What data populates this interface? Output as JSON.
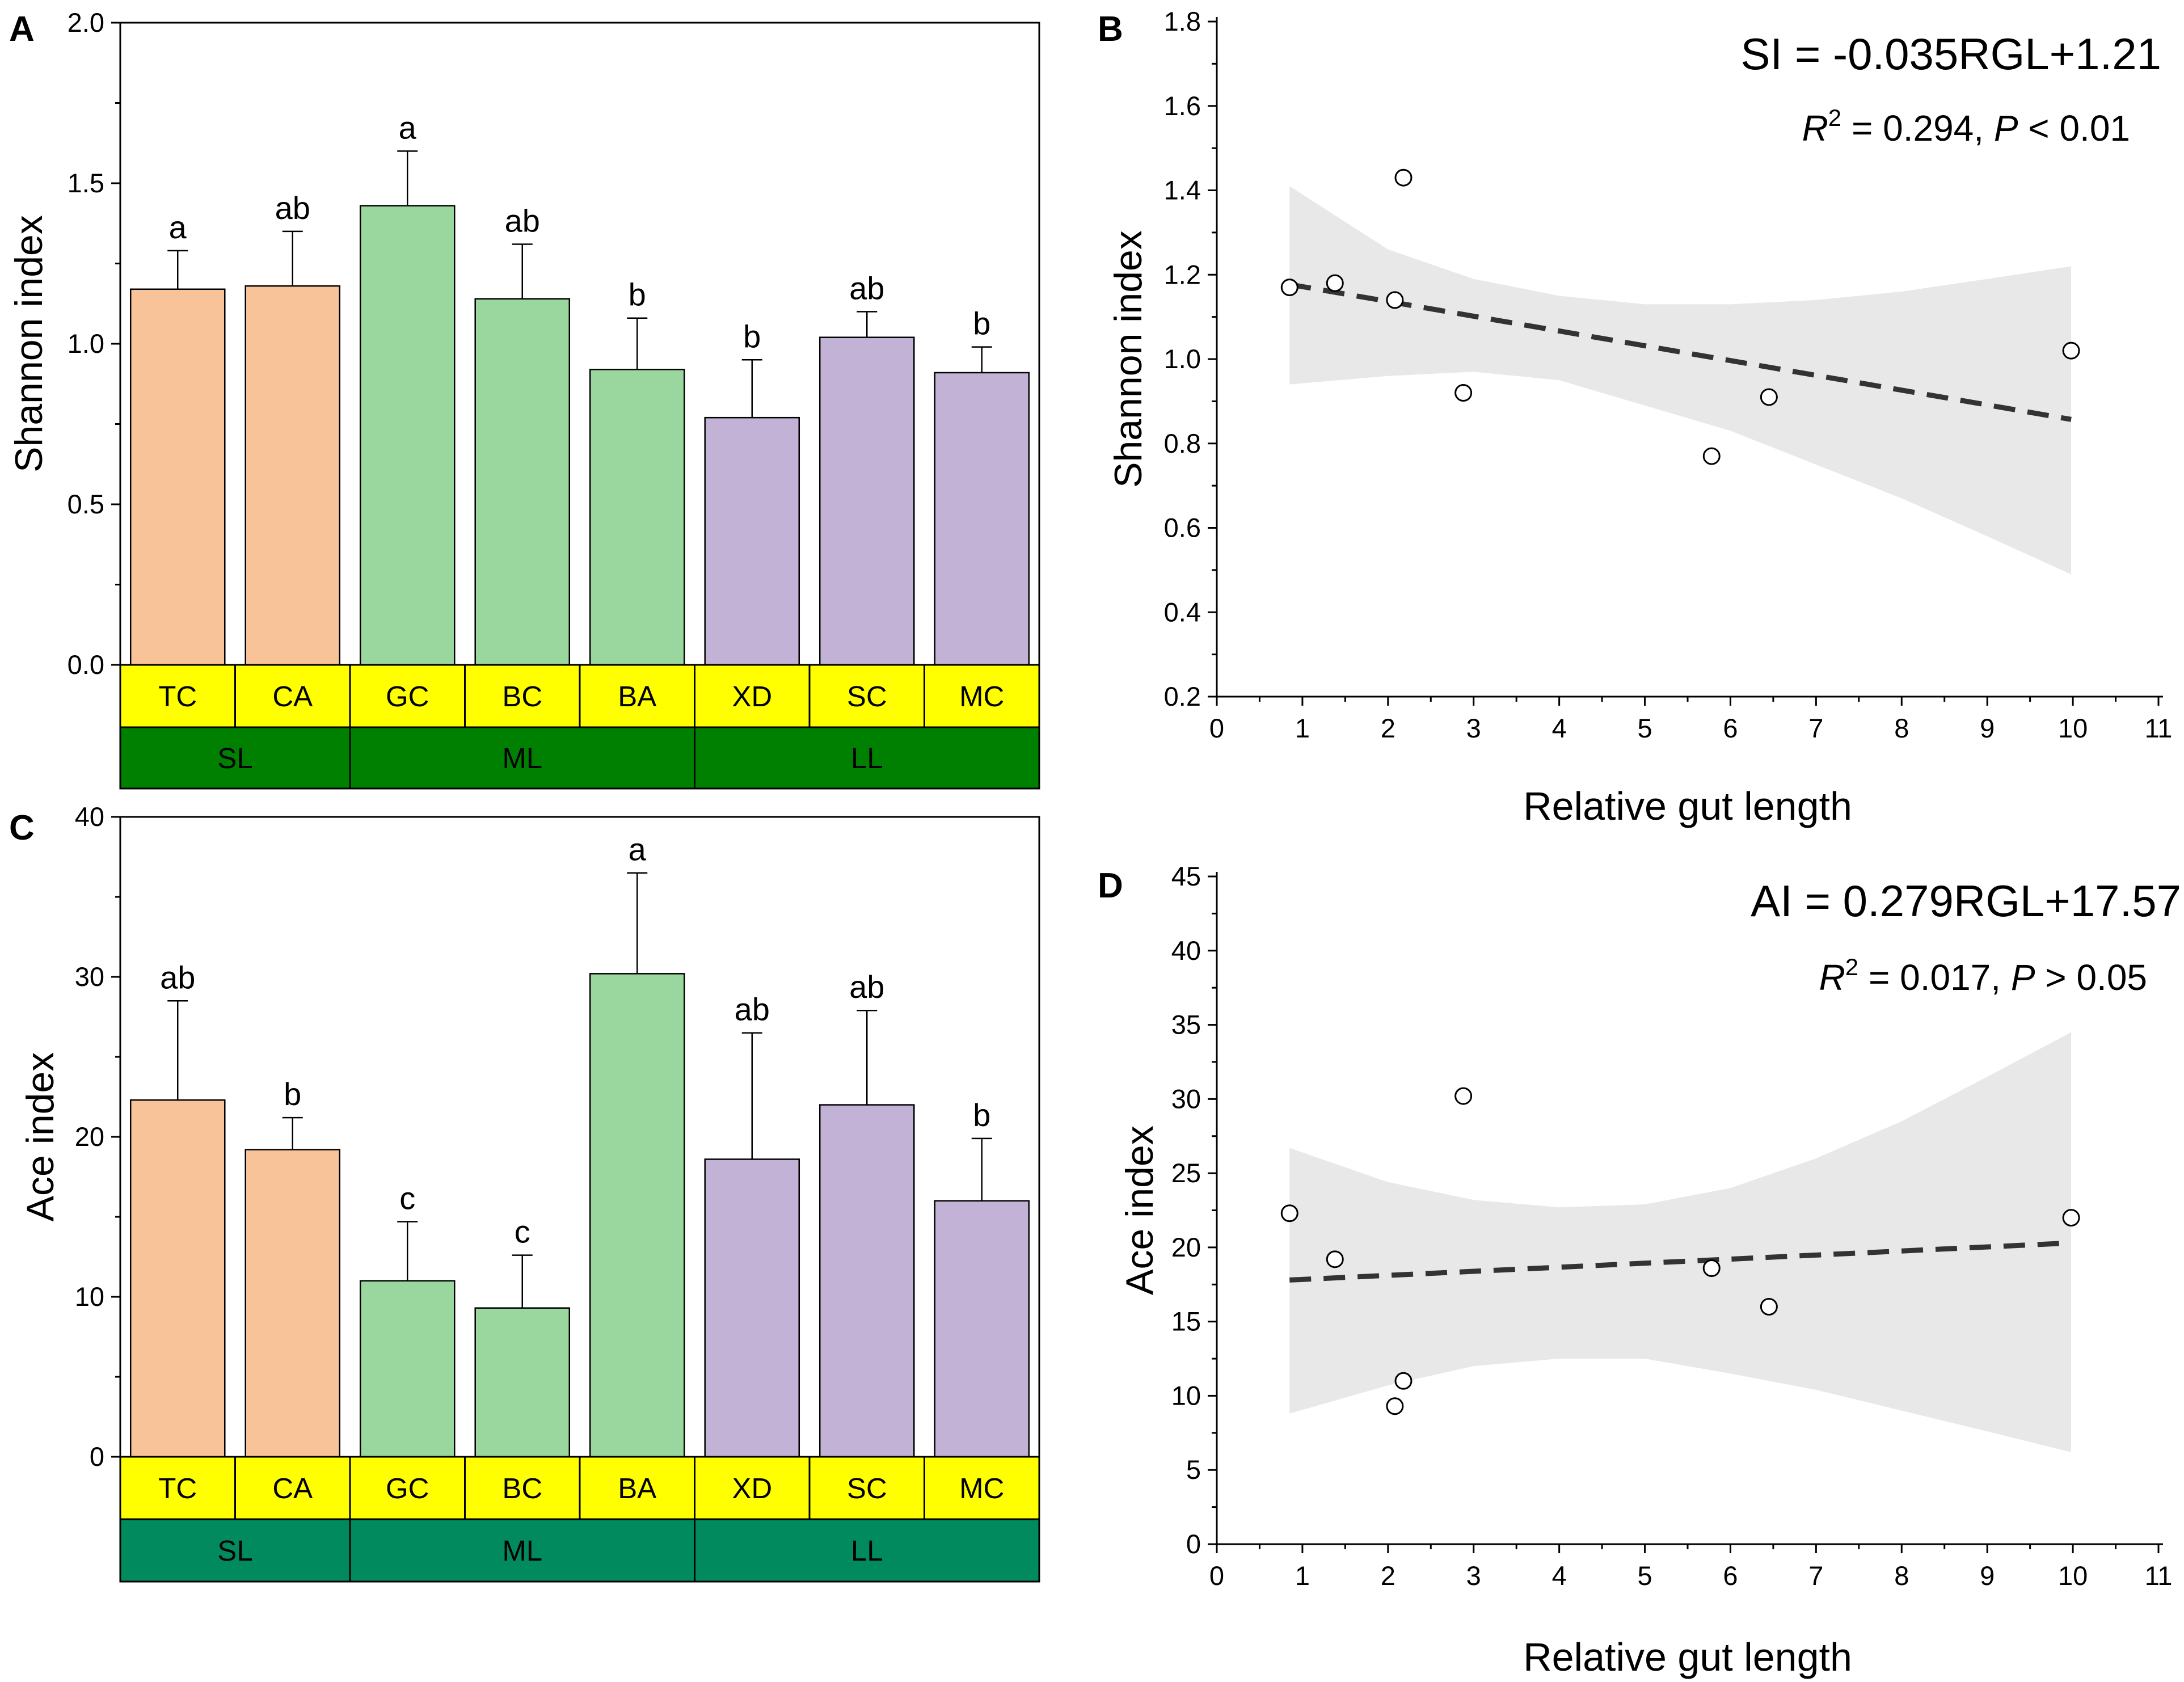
{
  "chart_data": [
    {
      "panel": "A",
      "type": "bar",
      "ylabel": "Shannon index",
      "ylim": [
        0,
        2.0
      ],
      "yticks": [
        "0.0",
        "0.5",
        "1.0",
        "1.5",
        "2.0"
      ],
      "categories": [
        "TC",
        "CA",
        "GC",
        "BC",
        "BA",
        "XD",
        "SC",
        "MC"
      ],
      "values": [
        1.17,
        1.18,
        1.43,
        1.14,
        0.92,
        0.77,
        1.02,
        0.91
      ],
      "errors": [
        0.12,
        0.17,
        0.17,
        0.17,
        0.16,
        0.18,
        0.08,
        0.08
      ],
      "letters": [
        "a",
        "ab",
        "a",
        "ab",
        "b",
        "b",
        "ab",
        "b"
      ],
      "category_group": [
        "SL",
        "SL",
        "ML",
        "ML",
        "ML",
        "LL",
        "LL",
        "LL"
      ],
      "groups": [
        {
          "name": "SL",
          "color": "#F9C399"
        },
        {
          "name": "ML",
          "color": "#9AD79E"
        },
        {
          "name": "LL",
          "color": "#C2B2D6"
        }
      ],
      "category_band_color": "#FFFF00",
      "group_band_color": "#008000"
    },
    {
      "panel": "B",
      "type": "scatter",
      "xlabel": "Relative gut length",
      "ylabel": "Shannon index",
      "xlim": [
        0,
        11
      ],
      "ylim": [
        0.2,
        1.8
      ],
      "xticks": [
        "0",
        "1",
        "2",
        "3",
        "4",
        "5",
        "6",
        "7",
        "8",
        "9",
        "10",
        "11"
      ],
      "yticks": [
        "0.2",
        "0.4",
        "0.6",
        "0.8",
        "1.0",
        "1.2",
        "1.4",
        "1.6",
        "1.8"
      ],
      "points": [
        {
          "x": 0.85,
          "y": 1.17
        },
        {
          "x": 1.38,
          "y": 1.18
        },
        {
          "x": 2.08,
          "y": 1.14
        },
        {
          "x": 2.18,
          "y": 1.43
        },
        {
          "x": 2.88,
          "y": 0.92
        },
        {
          "x": 5.78,
          "y": 0.77
        },
        {
          "x": 6.45,
          "y": 0.91
        },
        {
          "x": 9.98,
          "y": 1.02
        }
      ],
      "fit": {
        "x0": 0.85,
        "x1": 9.98,
        "y0": 1.177,
        "y1": 0.857
      },
      "band": {
        "x": [
          0.85,
          2.0,
          3.0,
          4.0,
          5.0,
          6.0,
          7.0,
          8.0,
          9.0,
          9.98
        ],
        "upper": [
          1.41,
          1.26,
          1.19,
          1.15,
          1.13,
          1.13,
          1.14,
          1.16,
          1.19,
          1.22
        ],
        "lower": [
          0.94,
          0.96,
          0.97,
          0.95,
          0.89,
          0.83,
          0.75,
          0.67,
          0.58,
          0.49
        ]
      },
      "equation": "SI = -0.035RGL+1.21",
      "stat_r2_label": "R",
      "stat_r2_sup": "2",
      "stat_r2_value": " = 0.294, ",
      "stat_p_label": "P",
      "stat_p_value": " < 0.01"
    },
    {
      "panel": "C",
      "type": "bar",
      "ylabel": "Ace index",
      "ylim": [
        0,
        40
      ],
      "yticks": [
        "0",
        "10",
        "20",
        "30",
        "40"
      ],
      "categories": [
        "TC",
        "CA",
        "GC",
        "BC",
        "BA",
        "XD",
        "SC",
        "MC"
      ],
      "values": [
        22.3,
        19.2,
        11.0,
        9.3,
        30.2,
        18.6,
        22.0,
        16.0
      ],
      "errors": [
        6.2,
        2.0,
        3.7,
        3.3,
        6.3,
        7.9,
        5.9,
        3.9
      ],
      "letters": [
        "ab",
        "b",
        "c",
        "c",
        "a",
        "ab",
        "ab",
        "b"
      ],
      "category_group": [
        "SL",
        "SL",
        "ML",
        "ML",
        "ML",
        "LL",
        "LL",
        "LL"
      ],
      "groups": [
        {
          "name": "SL",
          "color": "#F9C399"
        },
        {
          "name": "ML",
          "color": "#9AD79E"
        },
        {
          "name": "LL",
          "color": "#C2B2D6"
        }
      ],
      "category_band_color": "#FFFF00",
      "group_band_color": "#008A5E"
    },
    {
      "panel": "D",
      "type": "scatter",
      "xlabel": "Relative gut length",
      "ylabel": "Ace index",
      "xlim": [
        0,
        11
      ],
      "ylim": [
        0,
        45
      ],
      "xticks": [
        "0",
        "1",
        "2",
        "3",
        "4",
        "5",
        "6",
        "7",
        "8",
        "9",
        "10",
        "11"
      ],
      "yticks": [
        "0",
        "5",
        "10",
        "15",
        "20",
        "25",
        "30",
        "35",
        "40",
        "45"
      ],
      "points": [
        {
          "x": 0.85,
          "y": 22.3
        },
        {
          "x": 1.38,
          "y": 19.2
        },
        {
          "x": 2.08,
          "y": 9.3
        },
        {
          "x": 2.18,
          "y": 11.0
        },
        {
          "x": 2.88,
          "y": 30.2
        },
        {
          "x": 5.78,
          "y": 18.6
        },
        {
          "x": 6.45,
          "y": 16.0
        },
        {
          "x": 9.98,
          "y": 22.0
        }
      ],
      "fit": {
        "x0": 0.85,
        "x1": 9.98,
        "y0": 17.8,
        "y1": 20.3
      },
      "band": {
        "x": [
          0.85,
          2.0,
          3.0,
          4.0,
          5.0,
          6.0,
          7.0,
          8.0,
          9.0,
          9.98
        ],
        "upper": [
          26.7,
          24.4,
          23.2,
          22.7,
          22.9,
          24.0,
          26.0,
          28.5,
          31.5,
          34.5
        ],
        "lower": [
          8.8,
          10.7,
          12.0,
          12.5,
          12.5,
          11.5,
          10.4,
          9.0,
          7.6,
          6.2
        ]
      },
      "equation": "AI = 0.279RGL+17.57",
      "stat_r2_label": "R",
      "stat_r2_sup": "2",
      "stat_r2_value": " = 0.017, ",
      "stat_p_label": "P",
      "stat_p_value": " > 0.05"
    }
  ]
}
